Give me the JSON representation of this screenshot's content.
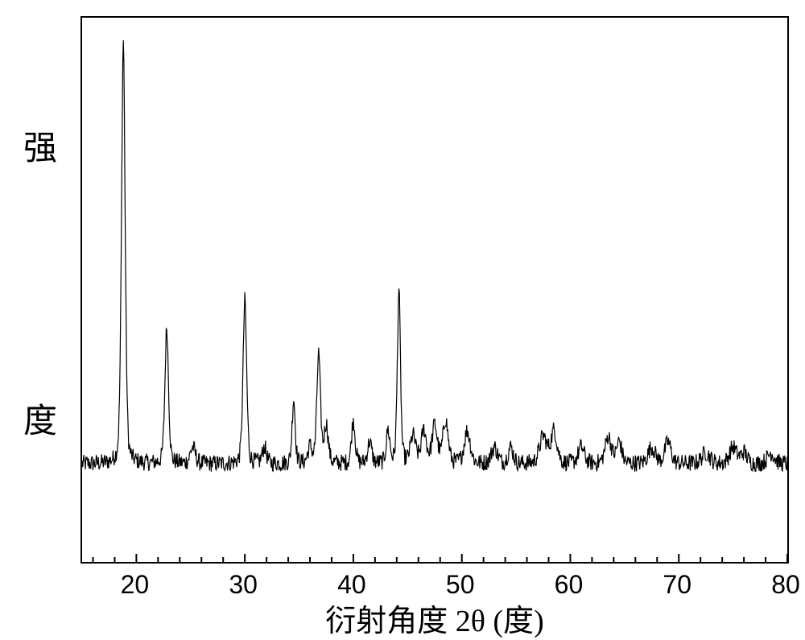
{
  "chart": {
    "type": "xrd-line",
    "xlabel": "衍射角度 2θ   (度)",
    "ylabel_chars": [
      "强",
      "度"
    ],
    "xlim": [
      15,
      80
    ],
    "ylim": [
      0,
      100
    ],
    "xticks": [
      20,
      30,
      40,
      50,
      60,
      70,
      80
    ],
    "tick_len_major": 10,
    "tick_len_minor": 6,
    "xminor_step": 2,
    "background_color": "#ffffff",
    "line_color": "#000000",
    "line_width": 1.2,
    "axis_color": "#000000",
    "axis_width": 2,
    "label_fontsize": 38,
    "tick_fontsize": 32,
    "baseline": 18,
    "noise_amp": 1.6,
    "peaks": [
      {
        "x": 18.8,
        "h": 78,
        "w": 0.35
      },
      {
        "x": 22.8,
        "h": 25,
        "w": 0.35
      },
      {
        "x": 25.2,
        "h": 3,
        "w": 0.5
      },
      {
        "x": 30.0,
        "h": 30,
        "w": 0.35
      },
      {
        "x": 31.8,
        "h": 3,
        "w": 0.4
      },
      {
        "x": 34.5,
        "h": 12,
        "w": 0.3
      },
      {
        "x": 36.0,
        "h": 3,
        "w": 0.4
      },
      {
        "x": 36.8,
        "h": 20,
        "w": 0.35
      },
      {
        "x": 37.5,
        "h": 7,
        "w": 0.4
      },
      {
        "x": 40.0,
        "h": 8,
        "w": 0.35
      },
      {
        "x": 41.5,
        "h": 4,
        "w": 0.4
      },
      {
        "x": 43.2,
        "h": 6,
        "w": 0.35
      },
      {
        "x": 44.2,
        "h": 32,
        "w": 0.3
      },
      {
        "x": 45.5,
        "h": 5,
        "w": 0.5
      },
      {
        "x": 46.5,
        "h": 6,
        "w": 0.5
      },
      {
        "x": 47.5,
        "h": 7,
        "w": 0.5
      },
      {
        "x": 48.5,
        "h": 8,
        "w": 0.5
      },
      {
        "x": 50.5,
        "h": 6,
        "w": 0.6
      },
      {
        "x": 53.0,
        "h": 3,
        "w": 0.6
      },
      {
        "x": 54.5,
        "h": 3,
        "w": 0.5
      },
      {
        "x": 57.5,
        "h": 5,
        "w": 0.7
      },
      {
        "x": 58.5,
        "h": 6,
        "w": 0.6
      },
      {
        "x": 61.0,
        "h": 3,
        "w": 0.6
      },
      {
        "x": 63.5,
        "h": 5,
        "w": 0.6
      },
      {
        "x": 64.5,
        "h": 4,
        "w": 0.5
      },
      {
        "x": 67.5,
        "h": 3,
        "w": 0.7
      },
      {
        "x": 69.0,
        "h": 4,
        "w": 0.6
      },
      {
        "x": 72.5,
        "h": 2,
        "w": 0.8
      },
      {
        "x": 75.0,
        "h": 3,
        "w": 0.7
      },
      {
        "x": 76.0,
        "h": 2,
        "w": 0.6
      },
      {
        "x": 78.5,
        "h": 2,
        "w": 0.7
      }
    ]
  }
}
